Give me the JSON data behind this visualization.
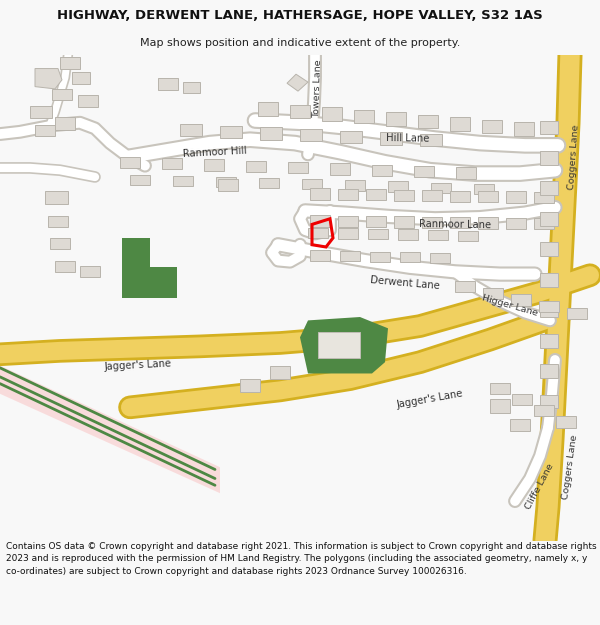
{
  "title": "HIGHWAY, DERWENT LANE, HATHERSAGE, HOPE VALLEY, S32 1AS",
  "subtitle": "Map shows position and indicative extent of the property.",
  "footer": "Contains OS data © Crown copyright and database right 2021. This information is subject to Crown copyright and database rights 2023 and is reproduced with the permission of HM Land Registry. The polygons (including the associated geometry, namely x, y co-ordinates) are subject to Crown copyright and database rights 2023 Ordnance Survey 100026316.",
  "bg_color": "#f8f8f8",
  "map_bg": "#f2f0eb",
  "road_yellow": "#f0d060",
  "road_yellow_border": "#d4b020",
  "road_white": "#ffffff",
  "road_gray_border": "#c8c4bc",
  "building_fill": "#dedad4",
  "building_stroke": "#b8b4ac",
  "green_fill": "#4e8844",
  "pink_fill": "#f8d0d0",
  "red_color": "#ee0000"
}
